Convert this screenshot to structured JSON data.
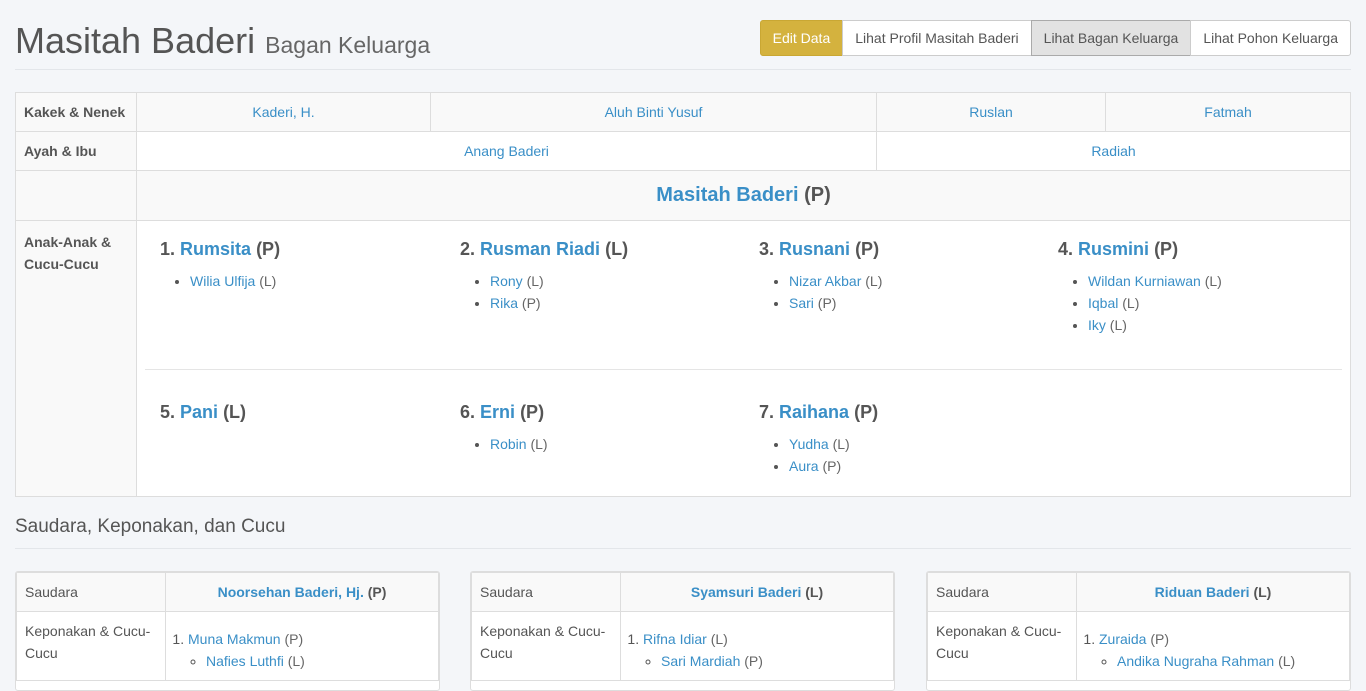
{
  "header": {
    "title": "Masitah Baderi",
    "subtitle": "Bagan Keluarga",
    "buttons": [
      "Edit Data",
      "Lihat Profil Masitah Baderi",
      "Lihat Bagan Keluarga",
      "Lihat Pohon Keluarga"
    ],
    "accent": "#d4b23e"
  },
  "chart": {
    "grandparents_label": "Kakek & Nenek",
    "grandparents": [
      "Kaderi, H.",
      "Aluh Binti Yusuf",
      "Ruslan",
      "Fatmah"
    ],
    "parents_label": "Ayah & Ibu",
    "parents": [
      "Anang Baderi",
      "Radiah"
    ],
    "self": {
      "name": "Masitah Baderi",
      "gender": "(P)"
    },
    "children_label": "Anak-Anak & Cucu-Cucu",
    "children": [
      {
        "num": "1.",
        "name": "Rumsita",
        "gender": "(P)",
        "grandchildren": [
          {
            "name": "Wilia Ulfija",
            "gender": "(L)"
          }
        ]
      },
      {
        "num": "2.",
        "name": "Rusman Riadi",
        "gender": "(L)",
        "grandchildren": [
          {
            "name": "Rony",
            "gender": "(L)"
          },
          {
            "name": "Rika",
            "gender": "(P)"
          }
        ]
      },
      {
        "num": "3.",
        "name": "Rusnani",
        "gender": "(P)",
        "grandchildren": [
          {
            "name": "Nizar Akbar",
            "gender": "(L)"
          },
          {
            "name": "Sari",
            "gender": "(P)"
          }
        ]
      },
      {
        "num": "4.",
        "name": "Rusmini",
        "gender": "(P)",
        "grandchildren": [
          {
            "name": "Wildan Kurniawan",
            "gender": "(L)"
          },
          {
            "name": "Iqbal",
            "gender": "(L)"
          },
          {
            "name": "Iky",
            "gender": "(L)"
          }
        ]
      },
      {
        "num": "5.",
        "name": "Pani",
        "gender": "(L)",
        "grandchildren": []
      },
      {
        "num": "6.",
        "name": "Erni",
        "gender": "(P)",
        "grandchildren": [
          {
            "name": "Robin",
            "gender": "(L)"
          }
        ]
      },
      {
        "num": "7.",
        "name": "Raihana",
        "gender": "(P)",
        "grandchildren": [
          {
            "name": "Yudha",
            "gender": "(L)"
          },
          {
            "name": "Aura",
            "gender": "(P)"
          }
        ]
      }
    ]
  },
  "siblings": {
    "title": "Saudara, Keponakan, dan Cucu",
    "sibling_label": "Saudara",
    "nephew_label": "Keponakan & Cucu-Cucu",
    "items": [
      {
        "name": "Noorsehan Baderi, Hj.",
        "gender": "(P)",
        "nephews": [
          {
            "name": "Muna Makmun",
            "gender": "(P)",
            "children": [
              {
                "name": "Nafies Luthfi",
                "gender": "(L)"
              }
            ]
          }
        ]
      },
      {
        "name": "Syamsuri Baderi",
        "gender": "(L)",
        "nephews": [
          {
            "name": "Rifna Idiar",
            "gender": "(L)",
            "children": [
              {
                "name": "Sari Mardiah",
                "gender": "(P)"
              }
            ]
          }
        ]
      },
      {
        "name": "Riduan Baderi",
        "gender": "(L)",
        "nephews": [
          {
            "name": "Zuraida",
            "gender": "(P)",
            "children": [
              {
                "name": "Andika Nugraha Rahman",
                "gender": "(L)"
              }
            ]
          }
        ]
      }
    ]
  }
}
